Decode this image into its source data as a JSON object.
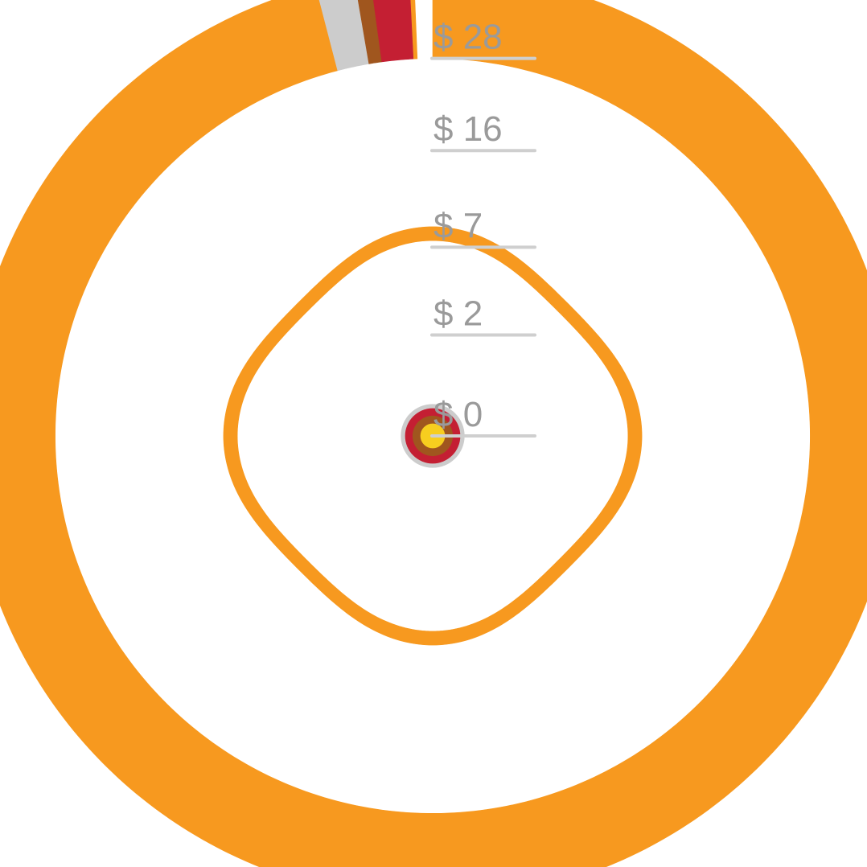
{
  "chart_data": {
    "type": "radial-area",
    "title": "",
    "scale": "sqrt",
    "radial_ticks": [
      {
        "value": 28,
        "label": "$ 28"
      },
      {
        "value": 16,
        "label": "$ 16"
      },
      {
        "value": 7,
        "label": "$ 7"
      },
      {
        "value": 2,
        "label": "$ 2"
      },
      {
        "value": 0,
        "label": "$ 0"
      }
    ],
    "rings": [
      {
        "name": "outer",
        "inner_value": 28,
        "outer_value": 42.4,
        "segments": [
          {
            "share": 0.9595,
            "color": "#F7991F"
          },
          {
            "share": 0.0135,
            "color": "#CCCCCC"
          },
          {
            "share": 0.0055,
            "color": "#A0561E"
          },
          {
            "share": 0.0135,
            "color": "#C41F33"
          },
          {
            "share": 0.0015,
            "color": "#F7991F"
          }
        ]
      },
      {
        "name": "inner",
        "inner_value": 6.8,
        "outer_value": 7.8,
        "wobble": 0.05,
        "segments": [
          {
            "share": 1.0,
            "color": "#F7991F"
          }
        ]
      }
    ],
    "center_markers": [
      {
        "value": 0.2,
        "color": "#CCCCCC"
      },
      {
        "value": 0.15,
        "color": "#C41F33"
      },
      {
        "value": 0.08,
        "color": "#A0561E"
      },
      {
        "value": 0.03,
        "color": "#F7CE1F"
      }
    ]
  }
}
